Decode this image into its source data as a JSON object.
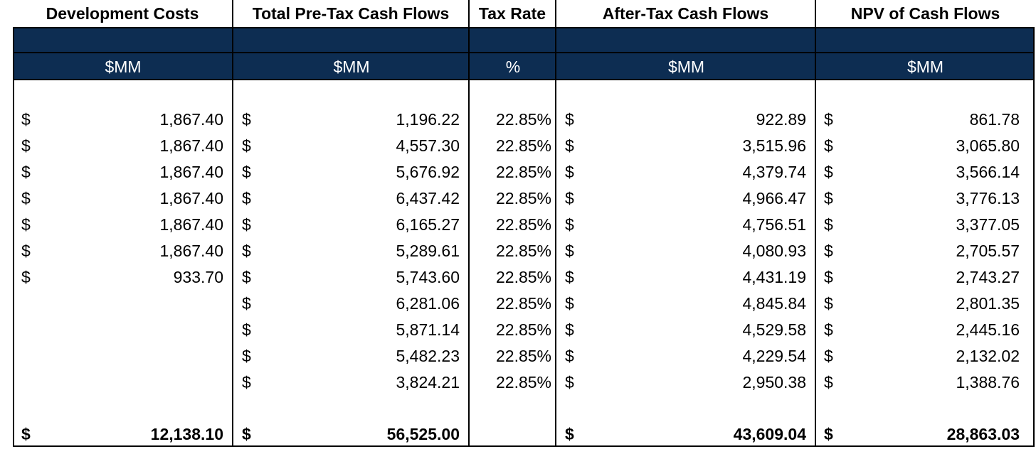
{
  "headers": {
    "development_costs": "Development Costs",
    "total_pretax": "Total Pre-Tax Cash Flows",
    "tax_rate": "Tax Rate",
    "after_tax": "After-Tax Cash Flows",
    "npv": "NPV of Cash Flows"
  },
  "units": {
    "development_costs": "$MM",
    "total_pretax": "$MM",
    "tax_rate": "%",
    "after_tax": "$MM",
    "npv": "$MM"
  },
  "currency_symbol": "$",
  "rows": [
    {
      "dev": "1,867.40",
      "pretax": "1,196.22",
      "tax": "22.85%",
      "after": "922.89",
      "npv": "861.78"
    },
    {
      "dev": "1,867.40",
      "pretax": "4,557.30",
      "tax": "22.85%",
      "after": "3,515.96",
      "npv": "3,065.80"
    },
    {
      "dev": "1,867.40",
      "pretax": "5,676.92",
      "tax": "22.85%",
      "after": "4,379.74",
      "npv": "3,566.14"
    },
    {
      "dev": "1,867.40",
      "pretax": "6,437.42",
      "tax": "22.85%",
      "after": "4,966.47",
      "npv": "3,776.13"
    },
    {
      "dev": "1,867.40",
      "pretax": "6,165.27",
      "tax": "22.85%",
      "after": "4,756.51",
      "npv": "3,377.05"
    },
    {
      "dev": "1,867.40",
      "pretax": "5,289.61",
      "tax": "22.85%",
      "after": "4,080.93",
      "npv": "2,705.57"
    },
    {
      "dev": "933.70",
      "pretax": "5,743.60",
      "tax": "22.85%",
      "after": "4,431.19",
      "npv": "2,743.27"
    },
    {
      "dev": "",
      "pretax": "6,281.06",
      "tax": "22.85%",
      "after": "4,845.84",
      "npv": "2,801.35"
    },
    {
      "dev": "",
      "pretax": "5,871.14",
      "tax": "22.85%",
      "after": "4,529.58",
      "npv": "2,445.16"
    },
    {
      "dev": "",
      "pretax": "5,482.23",
      "tax": "22.85%",
      "after": "4,229.54",
      "npv": "2,132.02"
    },
    {
      "dev": "",
      "pretax": "3,824.21",
      "tax": "22.85%",
      "after": "2,950.38",
      "npv": "1,388.76"
    }
  ],
  "totals": {
    "dev": "12,138.10",
    "pretax": "56,525.00",
    "tax": "",
    "after": "43,609.04",
    "npv": "28,863.03"
  }
}
